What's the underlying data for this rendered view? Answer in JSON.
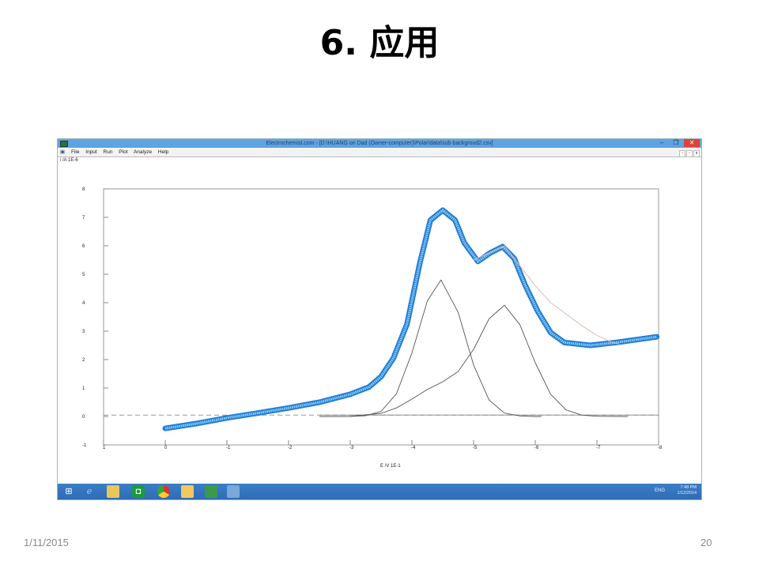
{
  "slide": {
    "title": "6. 应用",
    "date": "1/11/2015",
    "page_number": "20"
  },
  "window": {
    "title": "Electrochemist.com - [D:\\HUANG on Dad (Owner-computer)\\Polar\\data\\sub-backgroud2.csv]",
    "minimize": "–",
    "maximize": "❐",
    "close": "✕",
    "menu": [
      "File",
      "Input",
      "Run",
      "Plot",
      "Analyze",
      "Help"
    ],
    "mdi_buttons": [
      "-",
      "▫",
      "x"
    ]
  },
  "taskbar": {
    "icons": [
      "windows-start",
      "internet-explorer",
      "file-explorer",
      "store",
      "chrome",
      "outlook",
      "app-green",
      "electrochemist-app"
    ],
    "tray_language": "ENG",
    "time": "7:48 PM",
    "date": "1/12/2014",
    "color": "#3478c0"
  },
  "chart_data": {
    "type": "line",
    "ylabel": "i /A  1E-6",
    "xlabel": "E /V  1E-1",
    "xlim": [
      1,
      -8
    ],
    "ylim": [
      -1,
      8
    ],
    "x_reversed": true,
    "x_ticks": [
      "1",
      "0",
      "-1",
      "-2",
      "-3",
      "-4",
      "-5",
      "-6",
      "-7",
      "-8"
    ],
    "y_ticks": [
      "8",
      "7",
      "6",
      "5",
      "4",
      "3",
      "2",
      "1",
      "0",
      "-1"
    ],
    "grid": false,
    "baseline_y": 0.05,
    "series": [
      {
        "role": "measured",
        "color": "#1e7fd8",
        "style": "markers",
        "x": [
          0,
          -0.5,
          -1,
          -1.5,
          -2,
          -2.5,
          -3,
          -3.3,
          -3.5,
          -3.7,
          -3.92,
          -4.13,
          -4.3,
          -4.5,
          -4.7,
          -4.85,
          -5.07,
          -5.27,
          -5.47,
          -5.66,
          -5.83,
          -6.04,
          -6.25,
          -6.47,
          -6.89,
          -7.31,
          -7.97
        ],
        "y": [
          -0.42,
          -0.25,
          -0.05,
          0.12,
          0.3,
          0.5,
          0.78,
          1.03,
          1.4,
          2.05,
          3.25,
          5.4,
          6.9,
          7.25,
          6.9,
          6.1,
          5.45,
          5.75,
          5.97,
          5.55,
          4.65,
          3.7,
          2.95,
          2.6,
          2.5,
          2.6,
          2.8
        ]
      },
      {
        "role": "fit",
        "color": "#e0b8b8",
        "style": "line",
        "x": [
          -5.0,
          -5.25,
          -5.5,
          -5.75,
          -6.0,
          -6.25,
          -6.5,
          -6.75,
          -7.0,
          -7.25,
          -7.35
        ],
        "y": [
          5.5,
          5.75,
          6.0,
          5.3,
          4.6,
          4.0,
          3.6,
          3.2,
          2.85,
          2.6,
          2.55
        ]
      },
      {
        "role": "peak-1",
        "color": "#555555",
        "style": "line",
        "x": [
          -2.5,
          -3.0,
          -3.25,
          -3.5,
          -3.75,
          -4.0,
          -4.25,
          -4.47,
          -4.75,
          -5.0,
          -5.25,
          -5.5,
          -5.75,
          -6.0,
          -6.1
        ],
        "y": [
          0.0,
          0.003,
          0.028,
          0.18,
          0.8,
          2.23,
          4.06,
          4.8,
          3.66,
          1.81,
          0.58,
          0.12,
          0.02,
          0.0,
          0.0
        ]
      },
      {
        "role": "peak-2",
        "color": "#555555",
        "style": "line",
        "x": [
          -2.5,
          -3.0,
          -3.5,
          -3.75,
          -4.0,
          -4.25,
          -4.5,
          -4.75,
          -5.0,
          -5.25,
          -5.5,
          -5.75,
          -6.0,
          -6.25,
          -6.5,
          -6.75,
          -7.0,
          -7.5
        ],
        "y": [
          0.0,
          0.006,
          0.11,
          0.3,
          0.61,
          0.95,
          1.22,
          1.58,
          2.36,
          3.43,
          3.91,
          3.23,
          1.89,
          0.78,
          0.23,
          0.05,
          0.006,
          0.0
        ]
      }
    ]
  }
}
